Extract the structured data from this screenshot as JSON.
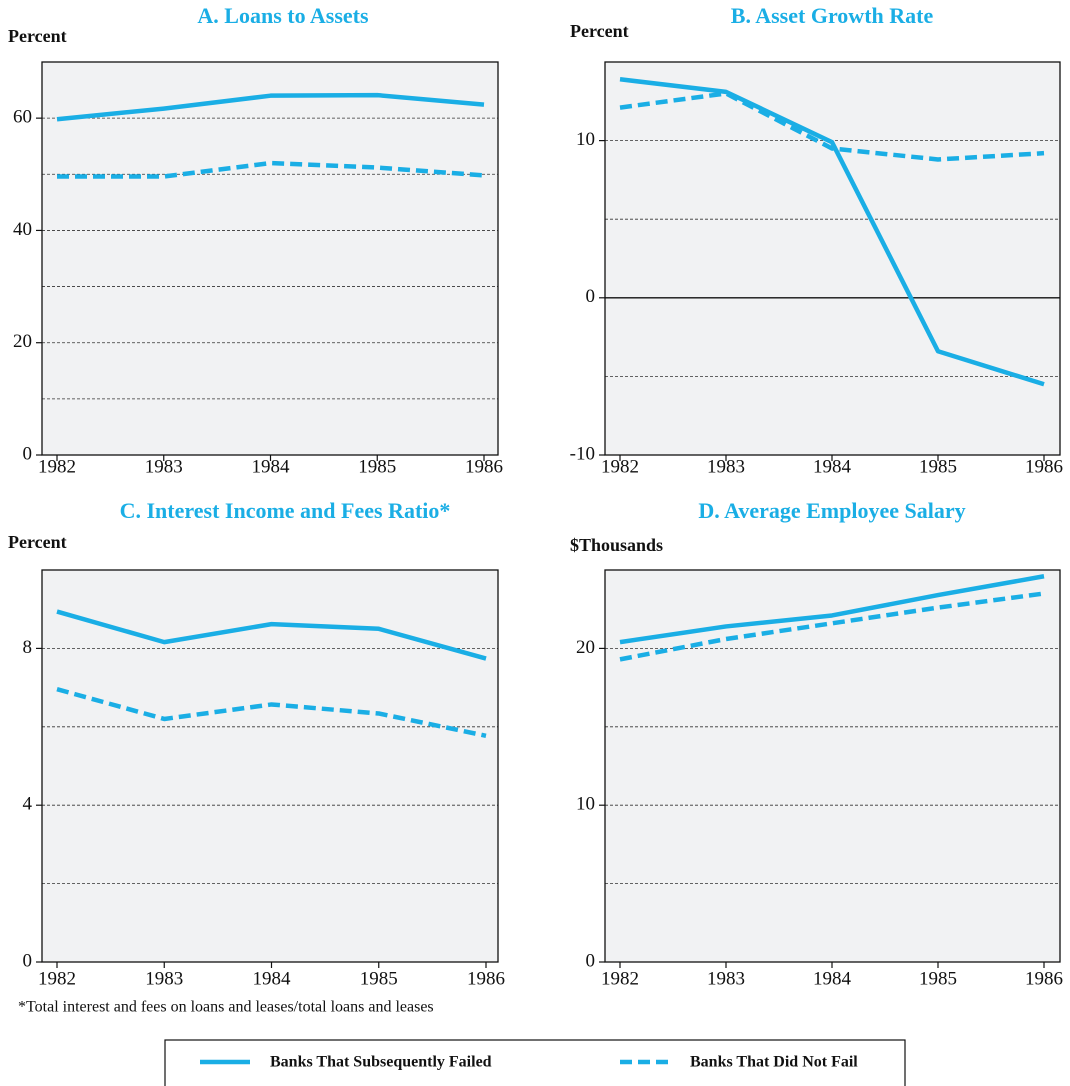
{
  "chart_data": [
    {
      "type": "line",
      "title": "A. Loans to Assets",
      "ylabel": "Percent",
      "categories": [
        "1982",
        "1983",
        "1984",
        "1985",
        "1986"
      ],
      "series": [
        {
          "color": "#1aaee5",
          "dash": false,
          "values": [
            59.8,
            61.7,
            64.0,
            64.1,
            62.4
          ]
        },
        {
          "color": "#1aaee5",
          "dash": true,
          "values": [
            49.6,
            49.6,
            52.0,
            51.2,
            49.8
          ]
        }
      ],
      "ylim": [
        0,
        70
      ],
      "yticks": [
        0,
        20,
        40,
        60
      ],
      "gridlines": [
        10,
        20,
        30,
        40,
        50,
        60
      ]
    },
    {
      "type": "line",
      "title": "B. Asset Growth Rate",
      "ylabel": "Percent",
      "categories": [
        "1982",
        "1983",
        "1984",
        "1985",
        "1986"
      ],
      "series": [
        {
          "color": "#1aaee5",
          "dash": false,
          "values": [
            13.9,
            13.1,
            9.9,
            -3.4,
            -5.5
          ]
        },
        {
          "color": "#1aaee5",
          "dash": true,
          "values": [
            12.1,
            13.0,
            9.5,
            8.8,
            9.2
          ]
        }
      ],
      "ylim": [
        -10,
        15
      ],
      "yticks": [
        -10,
        0,
        10
      ],
      "gridlines": [
        -5,
        0,
        5,
        10
      ]
    },
    {
      "type": "line",
      "title": "C. Interest Income and Fees Ratio*",
      "ylabel": "Percent",
      "note": "*Total interest and fees on loans and leases/total loans and leases",
      "categories": [
        "1982",
        "1983",
        "1984",
        "1985",
        "1986"
      ],
      "series": [
        {
          "color": "#1aaee5",
          "dash": false,
          "values": [
            8.94,
            8.16,
            8.62,
            8.5,
            7.74
          ]
        },
        {
          "color": "#1aaee5",
          "dash": true,
          "values": [
            6.96,
            6.2,
            6.57,
            6.34,
            5.77
          ]
        }
      ],
      "ylim": [
        0,
        10
      ],
      "yticks": [
        0,
        4,
        8
      ],
      "gridlines": [
        2,
        4,
        6,
        8
      ]
    },
    {
      "type": "line",
      "title": "D. Average Employee Salary",
      "ylabel": "$Thousands",
      "categories": [
        "1982",
        "1983",
        "1984",
        "1985",
        "1986"
      ],
      "series": [
        {
          "color": "#1aaee5",
          "dash": false,
          "values": [
            20.4,
            21.4,
            22.1,
            23.4,
            24.6
          ]
        },
        {
          "color": "#1aaee5",
          "dash": true,
          "values": [
            19.3,
            20.6,
            21.6,
            22.6,
            23.5
          ]
        }
      ],
      "ylim": [
        0,
        25
      ],
      "yticks": [
        0,
        10,
        20
      ],
      "gridlines": [
        5,
        10,
        15,
        20
      ]
    }
  ],
  "legend": [
    {
      "name": "Banks That Subsequently Failed",
      "color": "#1aaee5",
      "dash": false
    },
    {
      "name": "Banks That Did Not Fail",
      "color": "#1aaee5",
      "dash": true
    }
  ]
}
